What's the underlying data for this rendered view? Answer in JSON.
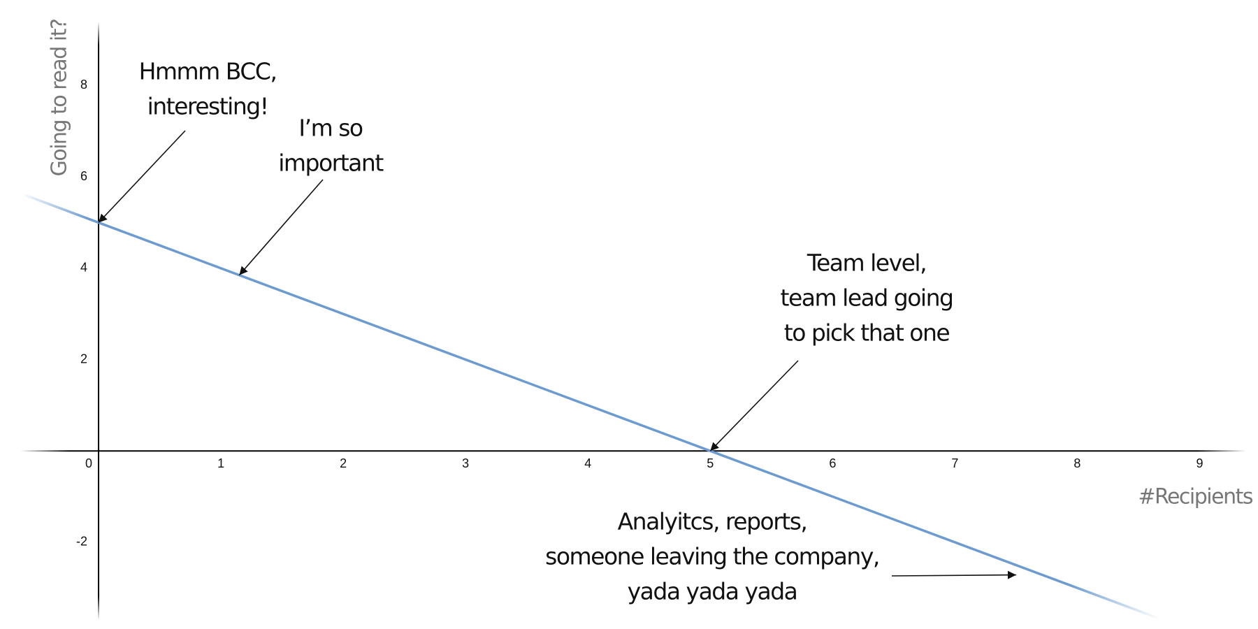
{
  "chart_data": {
    "type": "line",
    "x_label": "#Recipients",
    "y_label": "Going to read it?",
    "x": [
      -0.6,
      8.7
    ],
    "series": [
      {
        "color": "#6b9bd0",
        "values": [
          5.6,
          -3.7
        ]
      }
    ],
    "xlim": [
      -0.64,
      9.38
    ],
    "ylim": [
      -3.7,
      9.4
    ],
    "xticks": [
      0,
      1,
      2,
      3,
      4,
      5,
      6,
      7,
      8,
      9
    ],
    "yticks": [
      -2,
      2,
      4,
      6,
      8
    ],
    "annotations": [
      {
        "lines": [
          "Hmmm BCC,",
          "interesting!"
        ],
        "x": 0,
        "y": 5
      },
      {
        "lines": [
          "I’m so",
          "important"
        ],
        "x": 1.15,
        "y": 3.85
      },
      {
        "lines": [
          "Team level,",
          "team lead going",
          "to pick that one"
        ],
        "x": 5,
        "y": 0
      },
      {
        "lines": [
          "Analyitcs, reports,",
          "someone leaving the company,",
          "yada yada yada"
        ],
        "x": 7.5,
        "y": -2.5
      }
    ]
  }
}
